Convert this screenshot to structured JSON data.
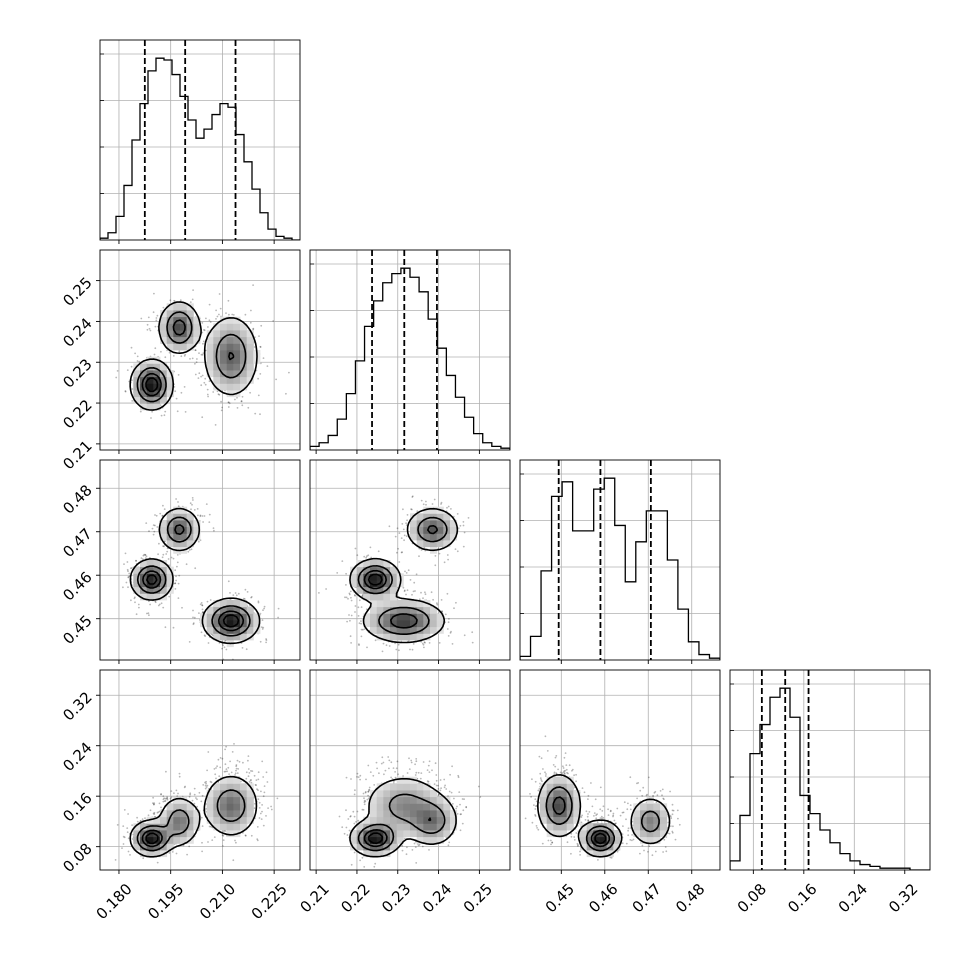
{
  "chart_data": {
    "type": "corner",
    "title": "",
    "parameters": [
      "",
      "",
      "",
      ""
    ],
    "grid": true,
    "ranges": [
      [
        0.1745,
        0.2325
      ],
      [
        0.2085,
        0.2575
      ],
      [
        0.4405,
        0.4865
      ],
      [
        0.043,
        0.36
      ]
    ],
    "ticks": [
      {
        "values": [
          0.18,
          0.195,
          0.21,
          0.225
        ],
        "labels": [
          "0.180",
          "0.195",
          "0.210",
          "0.225"
        ]
      },
      {
        "values": [
          0.21,
          0.22,
          0.23,
          0.24,
          0.25
        ],
        "labels": [
          "0.21",
          "0.22",
          "0.23",
          "0.24",
          "0.25"
        ]
      },
      {
        "values": [
          0.45,
          0.46,
          0.47,
          0.48
        ],
        "labels": [
          "0.45",
          "0.46",
          "0.47",
          "0.48"
        ]
      },
      {
        "values": [
          0.08,
          0.16,
          0.24,
          0.32
        ],
        "labels": [
          "0.08",
          "0.16",
          "0.24",
          "0.32"
        ]
      }
    ],
    "quantiles": [
      [
        0.1875,
        0.1992,
        0.2138
      ],
      [
        0.2237,
        0.2316,
        0.2396
      ],
      [
        0.4494,
        0.459,
        0.4706
      ],
      [
        0.0935,
        0.1305,
        0.1675
      ]
    ],
    "histograms": [
      {
        "edges_range": [
          0.1745,
          0.2325
        ],
        "counts": [
          0.01,
          0.04,
          0.13,
          0.3,
          0.55,
          0.75,
          0.93,
          1.0,
          0.99,
          0.91,
          0.79,
          0.66,
          0.56,
          0.61,
          0.69,
          0.75,
          0.73,
          0.58,
          0.43,
          0.28,
          0.15,
          0.06,
          0.02,
          0.01,
          0.0
        ]
      },
      {
        "edges_range": [
          0.2085,
          0.2575
        ],
        "counts": [
          0.02,
          0.04,
          0.08,
          0.17,
          0.31,
          0.49,
          0.68,
          0.82,
          0.92,
          0.97,
          1.0,
          0.95,
          0.87,
          0.72,
          0.56,
          0.41,
          0.29,
          0.18,
          0.09,
          0.04,
          0.02,
          0.01
        ]
      },
      {
        "edges_range": [
          0.4405,
          0.4865
        ],
        "counts": [
          0.02,
          0.13,
          0.49,
          0.9,
          0.98,
          0.71,
          0.71,
          0.94,
          1.0,
          0.74,
          0.43,
          0.65,
          0.82,
          0.82,
          0.55,
          0.28,
          0.1,
          0.03,
          0.01
        ]
      },
      {
        "edges_range": [
          0.043,
          0.36
        ],
        "counts": [
          0.05,
          0.3,
          0.64,
          0.8,
          0.95,
          1.0,
          0.84,
          0.41,
          0.31,
          0.22,
          0.15,
          0.09,
          0.05,
          0.03,
          0.02,
          0.01,
          0.01,
          0.01,
          0.0,
          0.0
        ]
      }
    ],
    "mixture_components": [
      {
        "weight": 0.3,
        "mean": [
          0.1895,
          0.2245,
          0.459,
          0.093
        ],
        "sd": [
          0.003,
          0.003,
          0.0023,
          0.014
        ]
      },
      {
        "weight": 0.25,
        "mean": [
          0.1975,
          0.2385,
          0.4705,
          0.12
        ],
        "sd": [
          0.003,
          0.0032,
          0.0025,
          0.02
        ]
      },
      {
        "weight": 0.45,
        "mean": [
          0.2125,
          0.2315,
          0.4495,
          0.145
        ],
        "sd": [
          0.004,
          0.005,
          0.0025,
          0.025
        ]
      }
    ],
    "contour_levels": [
      0.118,
      0.393,
      0.675,
      0.865
    ]
  }
}
